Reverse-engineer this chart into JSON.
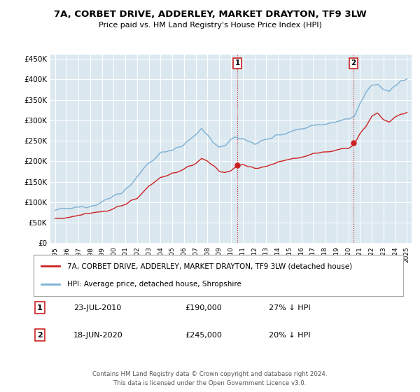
{
  "title": "7A, CORBET DRIVE, ADDERLEY, MARKET DRAYTON, TF9 3LW",
  "subtitle": "Price paid vs. HM Land Registry's House Price Index (HPI)",
  "legend_line1": "7A, CORBET DRIVE, ADDERLEY, MARKET DRAYTON, TF9 3LW (detached house)",
  "legend_line2": "HPI: Average price, detached house, Shropshire",
  "footer": "Contains HM Land Registry data © Crown copyright and database right 2024.\nThis data is licensed under the Open Government Licence v3.0.",
  "ann1": {
    "label": "1",
    "date": "23-JUL-2010",
    "price": "£190,000",
    "hpi": "27% ↓ HPI",
    "x_year": 2010.55,
    "y": 190000
  },
  "ann2": {
    "label": "2",
    "date": "18-JUN-2020",
    "price": "£245,000",
    "hpi": "20% ↓ HPI",
    "x_year": 2020.46,
    "y": 245000
  },
  "hpi_color": "#7ab0d4",
  "price_color": "#cc2222",
  "bg_color": "#ffffff",
  "plot_bg_color": "#dce8f0",
  "grid_color": "#ffffff",
  "ylim": [
    0,
    460000
  ],
  "xlim_start": 1994.6,
  "xlim_end": 2025.4,
  "yticks": [
    0,
    50000,
    100000,
    150000,
    200000,
    250000,
    300000,
    350000,
    400000,
    450000
  ],
  "xticks": [
    1995,
    1996,
    1997,
    1998,
    1999,
    2000,
    2001,
    2002,
    2003,
    2004,
    2005,
    2006,
    2007,
    2008,
    2009,
    2010,
    2011,
    2012,
    2013,
    2014,
    2015,
    2016,
    2017,
    2018,
    2019,
    2020,
    2021,
    2022,
    2023,
    2024,
    2025
  ],
  "hpi_keypoints": {
    "1995": 80000,
    "1996": 83000,
    "1997": 87000,
    "1998": 92000,
    "1999": 100000,
    "2000": 115000,
    "2001": 130000,
    "2002": 160000,
    "2003": 195000,
    "2004": 220000,
    "2005": 230000,
    "2006": 240000,
    "2007": 265000,
    "2007.5": 280000,
    "2008": 265000,
    "2008.5": 245000,
    "2009": 230000,
    "2009.5": 240000,
    "2010": 255000,
    "2010.5": 258000,
    "2011": 255000,
    "2011.5": 248000,
    "2012": 245000,
    "2012.5": 248000,
    "2013": 252000,
    "2013.5": 258000,
    "2014": 265000,
    "2015": 272000,
    "2016": 280000,
    "2017": 288000,
    "2018": 292000,
    "2019": 298000,
    "2020": 302000,
    "2020.5": 310000,
    "2021": 340000,
    "2021.5": 365000,
    "2022": 385000,
    "2022.5": 390000,
    "2023": 375000,
    "2023.5": 370000,
    "2024": 385000,
    "2024.5": 395000,
    "2025": 400000
  },
  "price_keypoints": {
    "1995": 60000,
    "1996": 62000,
    "1997": 67000,
    "1998": 72000,
    "1999": 76000,
    "2000": 85000,
    "2001": 95000,
    "2002": 110000,
    "2003": 140000,
    "2004": 160000,
    "2005": 170000,
    "2006": 180000,
    "2007": 195000,
    "2007.5": 207000,
    "2008": 200000,
    "2008.5": 190000,
    "2009": 175000,
    "2009.5": 172000,
    "2010": 178000,
    "2010.5": 188000,
    "2011": 192000,
    "2011.5": 185000,
    "2012": 182000,
    "2012.5": 185000,
    "2013": 188000,
    "2013.5": 192000,
    "2014": 198000,
    "2015": 205000,
    "2016": 210000,
    "2017": 218000,
    "2018": 222000,
    "2019": 228000,
    "2020": 232000,
    "2020.5": 240000,
    "2021": 268000,
    "2021.5": 285000,
    "2022": 310000,
    "2022.5": 318000,
    "2023": 302000,
    "2023.5": 295000,
    "2024": 308000,
    "2024.5": 315000,
    "2025": 318000
  }
}
